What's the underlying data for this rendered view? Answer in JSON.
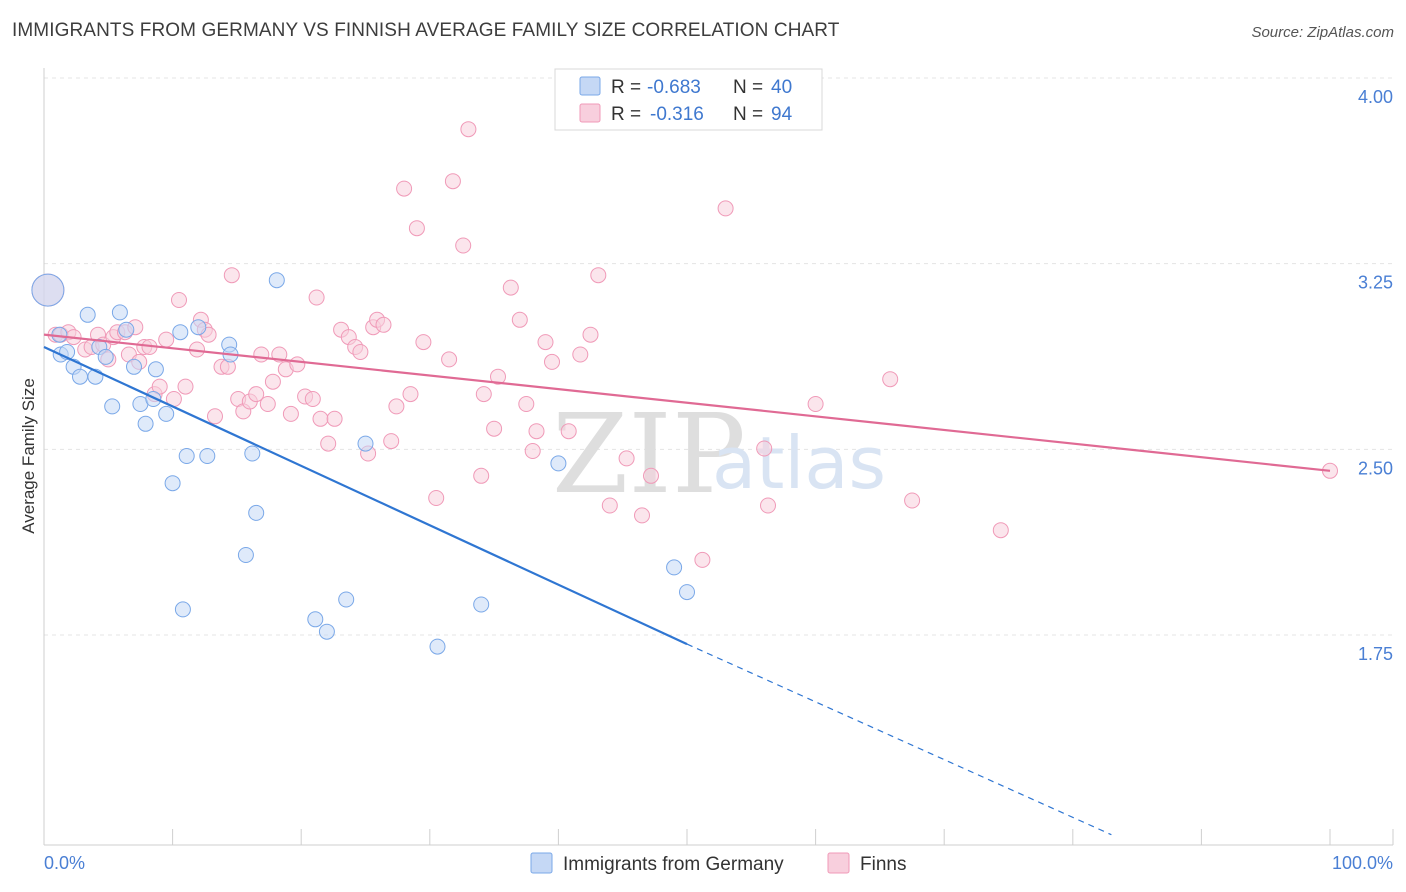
{
  "title": "IMMIGRANTS FROM GERMANY VS FINNISH AVERAGE FAMILY SIZE CORRELATION CHART",
  "source": "Source: ZipAtlas.com",
  "watermark": {
    "part1": "ZIP",
    "part2": "atlas"
  },
  "chart_data": {
    "type": "scatter",
    "ylabel": "Average Family Size",
    "xlim": [
      0,
      100
    ],
    "ylim": [
      1.0,
      4.1
    ],
    "x_tick_labels": {
      "left": "0.0%",
      "right": "100.0%"
    },
    "y_ticks": [
      {
        "value": 4.0,
        "label": "4.00"
      },
      {
        "value": 3.25,
        "label": "3.25"
      },
      {
        "value": 2.5,
        "label": "2.50"
      },
      {
        "value": 1.75,
        "label": "1.75"
      }
    ],
    "grid": true,
    "legend_position": "top-center",
    "series": [
      {
        "name": "Immigrants from Germany",
        "color": "#7aa8e8",
        "fill": "#c5d8f5",
        "line_color": "#2f76d2",
        "r": "-0.683",
        "n": "40",
        "trend": {
          "x0": 0,
          "y0": 2.99,
          "x1": 50,
          "y1": 1.79,
          "dash_to_x": 83,
          "dash_to_y": 1.02
        },
        "points": [
          [
            0.3,
            3.22
          ],
          [
            1.2,
            3.04
          ],
          [
            1.3,
            2.96
          ],
          [
            1.8,
            2.97
          ],
          [
            2.3,
            2.91
          ],
          [
            2.8,
            2.87
          ],
          [
            3.4,
            3.12
          ],
          [
            4.0,
            2.87
          ],
          [
            4.3,
            2.99
          ],
          [
            4.8,
            2.95
          ],
          [
            5.3,
            2.75
          ],
          [
            5.9,
            3.13
          ],
          [
            6.4,
            3.06
          ],
          [
            7.0,
            2.91
          ],
          [
            7.5,
            2.76
          ],
          [
            7.9,
            2.68
          ],
          [
            8.5,
            2.78
          ],
          [
            8.7,
            2.9
          ],
          [
            9.5,
            2.72
          ],
          [
            10.0,
            2.44
          ],
          [
            10.6,
            3.05
          ],
          [
            11.1,
            2.55
          ],
          [
            12.0,
            3.07
          ],
          [
            12.7,
            2.55
          ],
          [
            14.4,
            3.0
          ],
          [
            14.5,
            2.96
          ],
          [
            15.7,
            2.15
          ],
          [
            16.2,
            2.56
          ],
          [
            16.5,
            2.32
          ],
          [
            18.1,
            3.26
          ],
          [
            10.8,
            1.93
          ],
          [
            21.1,
            1.89
          ],
          [
            22.0,
            1.84
          ],
          [
            23.5,
            1.97
          ],
          [
            25.0,
            2.6
          ],
          [
            30.6,
            1.78
          ],
          [
            34.0,
            1.95
          ],
          [
            40.0,
            2.52
          ],
          [
            49.0,
            2.1
          ],
          [
            50.0,
            2.0
          ]
        ]
      },
      {
        "name": "Finns",
        "color": "#f09ab8",
        "fill": "#f8cfdd",
        "line_color": "#e06a94",
        "r": "-0.316",
        "n": "94",
        "trend": {
          "x0": 0,
          "y0": 3.04,
          "x1": 100,
          "y1": 2.49
        },
        "points": [
          [
            0.3,
            3.22
          ],
          [
            0.9,
            3.04
          ],
          [
            1.3,
            3.04
          ],
          [
            1.9,
            3.05
          ],
          [
            2.3,
            3.03
          ],
          [
            3.2,
            2.98
          ],
          [
            3.7,
            2.99
          ],
          [
            4.2,
            3.04
          ],
          [
            4.6,
            3.0
          ],
          [
            5.0,
            2.94
          ],
          [
            5.4,
            3.03
          ],
          [
            5.7,
            3.05
          ],
          [
            6.3,
            3.05
          ],
          [
            6.6,
            2.96
          ],
          [
            7.1,
            3.07
          ],
          [
            7.4,
            2.93
          ],
          [
            7.8,
            2.99
          ],
          [
            8.2,
            2.99
          ],
          [
            8.6,
            2.8
          ],
          [
            9.0,
            2.83
          ],
          [
            9.5,
            3.02
          ],
          [
            10.1,
            2.78
          ],
          [
            10.5,
            3.18
          ],
          [
            11.0,
            2.83
          ],
          [
            11.9,
            2.98
          ],
          [
            12.2,
            3.1
          ],
          [
            12.5,
            3.06
          ],
          [
            12.8,
            3.04
          ],
          [
            13.3,
            2.71
          ],
          [
            13.8,
            2.91
          ],
          [
            14.3,
            2.91
          ],
          [
            14.6,
            3.28
          ],
          [
            15.1,
            2.78
          ],
          [
            15.5,
            2.73
          ],
          [
            16.0,
            2.77
          ],
          [
            16.5,
            2.8
          ],
          [
            16.9,
            2.96
          ],
          [
            17.4,
            2.76
          ],
          [
            17.8,
            2.85
          ],
          [
            18.3,
            2.96
          ],
          [
            18.8,
            2.9
          ],
          [
            19.2,
            2.72
          ],
          [
            19.7,
            2.92
          ],
          [
            20.3,
            2.79
          ],
          [
            20.9,
            2.78
          ],
          [
            21.2,
            3.19
          ],
          [
            21.5,
            2.7
          ],
          [
            22.1,
            2.6
          ],
          [
            22.6,
            2.7
          ],
          [
            23.1,
            3.06
          ],
          [
            23.7,
            3.03
          ],
          [
            24.2,
            2.99
          ],
          [
            24.6,
            2.97
          ],
          [
            25.2,
            2.56
          ],
          [
            25.6,
            3.07
          ],
          [
            25.9,
            3.1
          ],
          [
            26.4,
            3.08
          ],
          [
            27.0,
            2.61
          ],
          [
            27.4,
            2.75
          ],
          [
            28.0,
            3.63
          ],
          [
            28.5,
            2.8
          ],
          [
            29.0,
            3.47
          ],
          [
            29.5,
            3.01
          ],
          [
            30.5,
            2.38
          ],
          [
            31.8,
            3.66
          ],
          [
            31.5,
            2.94
          ],
          [
            32.6,
            3.4
          ],
          [
            33.0,
            3.87
          ],
          [
            34.0,
            2.47
          ],
          [
            34.2,
            2.8
          ],
          [
            35.0,
            2.66
          ],
          [
            35.3,
            2.87
          ],
          [
            36.3,
            3.23
          ],
          [
            37.0,
            3.1
          ],
          [
            37.5,
            2.76
          ],
          [
            38.3,
            2.65
          ],
          [
            38.0,
            2.57
          ],
          [
            39.0,
            3.01
          ],
          [
            39.5,
            2.93
          ],
          [
            40.8,
            2.65
          ],
          [
            41.7,
            2.96
          ],
          [
            42.5,
            3.04
          ],
          [
            43.1,
            3.28
          ],
          [
            44.0,
            2.35
          ],
          [
            45.3,
            2.54
          ],
          [
            46.5,
            2.31
          ],
          [
            47.2,
            2.47
          ],
          [
            51.2,
            2.13
          ],
          [
            53.0,
            3.55
          ],
          [
            56.0,
            2.58
          ],
          [
            56.3,
            2.35
          ],
          [
            60.0,
            2.76
          ],
          [
            65.8,
            2.86
          ],
          [
            67.5,
            2.37
          ],
          [
            74.4,
            2.25
          ],
          [
            100.0,
            2.49
          ]
        ]
      }
    ]
  }
}
